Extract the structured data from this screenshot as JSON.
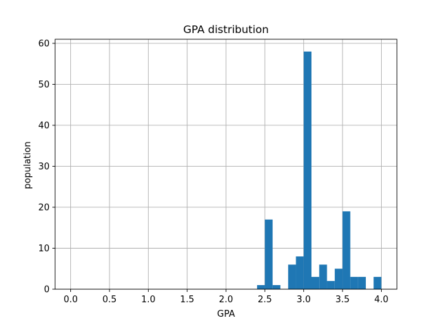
{
  "chart_data": {
    "type": "bar",
    "title": "GPA distribution",
    "xlabel": "GPA",
    "ylabel": "population",
    "xlim": [
      -0.2,
      4.2
    ],
    "ylim": [
      0,
      61
    ],
    "grid": true,
    "bar_color": "#1f77b4",
    "grid_color": "#b0b0b0",
    "bin_width": 0.1,
    "x_ticks": [
      "0.0",
      "0.5",
      "1.0",
      "1.5",
      "2.0",
      "2.5",
      "3.0",
      "3.5",
      "4.0"
    ],
    "y_ticks": [
      "0",
      "10",
      "20",
      "30",
      "40",
      "50",
      "60"
    ],
    "bins": [
      {
        "start": 2.4,
        "value": 1
      },
      {
        "start": 2.5,
        "value": 17
      },
      {
        "start": 2.6,
        "value": 1
      },
      {
        "start": 2.8,
        "value": 6
      },
      {
        "start": 2.9,
        "value": 8
      },
      {
        "start": 3.0,
        "value": 58
      },
      {
        "start": 3.1,
        "value": 3
      },
      {
        "start": 3.2,
        "value": 6
      },
      {
        "start": 3.3,
        "value": 2
      },
      {
        "start": 3.4,
        "value": 5
      },
      {
        "start": 3.5,
        "value": 19
      },
      {
        "start": 3.6,
        "value": 3
      },
      {
        "start": 3.7,
        "value": 3
      },
      {
        "start": 3.9,
        "value": 3
      }
    ]
  }
}
